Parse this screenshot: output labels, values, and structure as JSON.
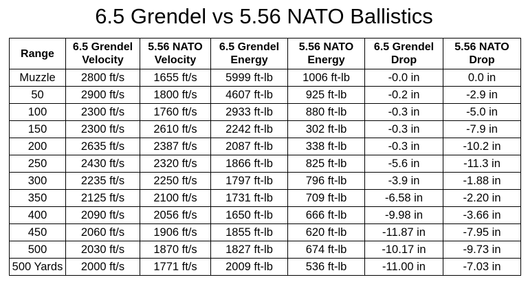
{
  "title": "6.5 Grendel vs 5.56 NATO Ballistics",
  "table": {
    "columns": [
      {
        "line1": "Range",
        "line2": ""
      },
      {
        "line1": "6.5 Grendel",
        "line2": "Velocity"
      },
      {
        "line1": "5.56 NATO",
        "line2": "Velocity"
      },
      {
        "line1": "6.5 Grendel",
        "line2": "Energy"
      },
      {
        "line1": "5.56 NATO",
        "line2": "Energy"
      },
      {
        "line1": "6.5 Grendel",
        "line2": "Drop"
      },
      {
        "line1": "5.56 NATO",
        "line2": "Drop"
      }
    ],
    "rows": [
      [
        "Muzzle",
        "2800 ft/s",
        "1655 ft/s",
        "5999 ft-lb",
        "1006 ft-lb",
        "-0.0 in",
        "0.0 in"
      ],
      [
        "50",
        "2900 ft/s",
        "1800 ft/s",
        "4607 ft-lb",
        "925 ft-lb",
        "-0.2 in",
        "-2.9 in"
      ],
      [
        "100",
        "2300 ft/s",
        "1760 ft/s",
        "2933 ft-lb",
        "880 ft-lb",
        "-0.3 in",
        "-5.0 in"
      ],
      [
        "150",
        "2300 ft/s",
        "2610 ft/s",
        "2242 ft-lb",
        "302 ft-lb",
        "-0.3 in",
        "-7.9 in"
      ],
      [
        "200",
        "2635 ft/s",
        "2387 ft/s",
        "2087 ft-lb",
        "338 ft-lb",
        "-0.3 in",
        "-10.2 in"
      ],
      [
        "250",
        "2430 ft/s",
        "2320 ft/s",
        "1866 ft-lb",
        "825 ft-lb",
        "-5.6 in",
        "-11.3 in"
      ],
      [
        "300",
        "2235 ft/s",
        "2250 ft/s",
        "1797 ft-lb",
        "796 ft-lb",
        "-3.9 in",
        "-1.88 in"
      ],
      [
        "350",
        "2125 ft/s",
        "2100 ft/s",
        "1731 ft-lb",
        "709 ft-lb",
        "-6.58 in",
        "-2.20 in"
      ],
      [
        "400",
        "2090 ft/s",
        "2056 ft/s",
        "1650 ft-lb",
        "666 ft-lb",
        "-9.98 in",
        "-3.66 in"
      ],
      [
        "450",
        "2060 ft/s",
        "1906 ft/s",
        "1855 ft-lb",
        "620 ft-lb",
        "-11.87 in",
        "-7.95 in"
      ],
      [
        "500",
        "2030 ft/s",
        "1870 ft/s",
        "1827 ft-lb",
        "674 ft-lb",
        "-10.17 in",
        "-9.73 in"
      ],
      [
        "500 Yards",
        "2000 ft/s",
        "1771 ft/s",
        "2009 ft-lb",
        "536 ft-lb",
        "-11.00 in",
        "-7.03 in"
      ]
    ]
  }
}
